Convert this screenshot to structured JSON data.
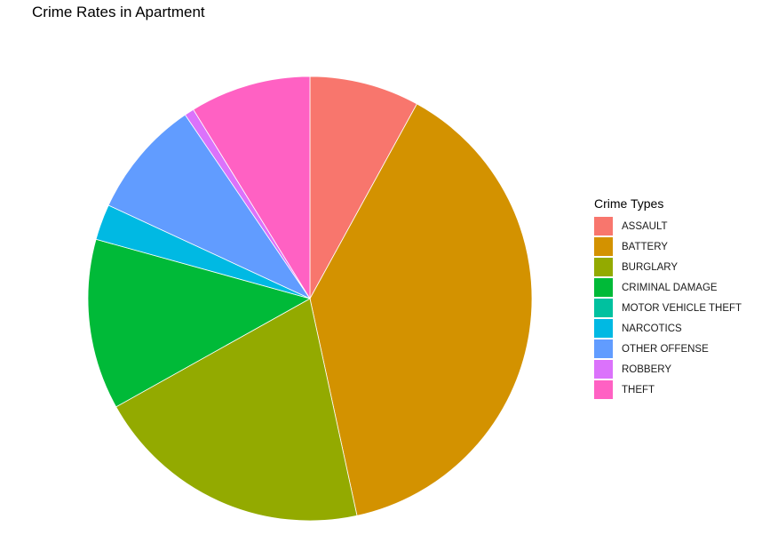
{
  "chart_data": {
    "type": "pie",
    "title": "Crime Rates in Apartment",
    "legend_title": "Crime Types",
    "legend_position": "right",
    "categories": [
      "ASSAULT",
      "BATTERY",
      "BURGLARY",
      "CRIMINAL DAMAGE",
      "MOTOR VEHICLE THEFT",
      "NARCOTICS",
      "OTHER OFFENSE",
      "ROBBERY",
      "THEFT"
    ],
    "values": [
      8.0,
      38.6,
      20.3,
      12.4,
      0.0,
      2.6,
      8.6,
      0.7,
      8.8
    ],
    "colors": [
      "#F8766D",
      "#D39200",
      "#93AA00",
      "#00BA38",
      "#00C19F",
      "#00B9E3",
      "#619CFF",
      "#DB72FB",
      "#FF61C3"
    ]
  }
}
